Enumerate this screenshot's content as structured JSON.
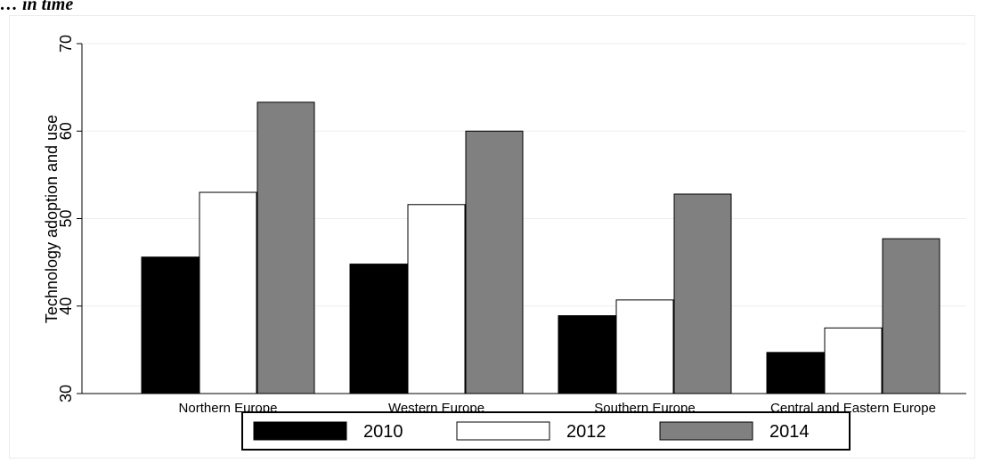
{
  "subtitle": "… in time",
  "chart_data": {
    "type": "bar",
    "title": "",
    "xlabel": "",
    "ylabel": "Technology adoption and use",
    "ylim": [
      30,
      70
    ],
    "yticks": [
      30,
      40,
      50,
      60,
      70
    ],
    "grid": true,
    "legend_position": "bottom",
    "categories": [
      "Northern Europe",
      "Western Europe",
      "Southern Europe",
      "Central and Eastern Europe"
    ],
    "series": [
      {
        "name": "2010",
        "color": "#000000",
        "values": [
          45.6,
          44.8,
          38.9,
          34.7
        ]
      },
      {
        "name": "2012",
        "color": "#ffffff",
        "values": [
          53.0,
          51.6,
          40.7,
          37.5
        ]
      },
      {
        "name": "2014",
        "color": "#808080",
        "values": [
          63.3,
          60.0,
          52.8,
          47.7
        ]
      }
    ]
  }
}
